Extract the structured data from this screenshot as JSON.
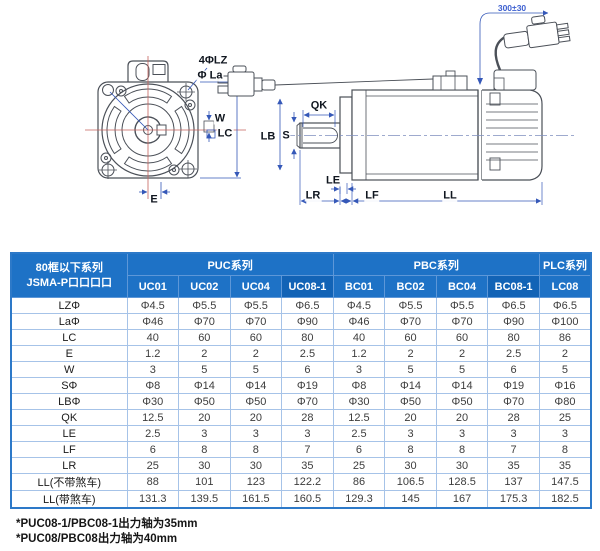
{
  "diagram": {
    "labels": {
      "holes": "4ΦLZ",
      "la": "Φ La",
      "w": "W",
      "lc": "LC",
      "e": "E",
      "lb": "LB",
      "s": "S",
      "qk": "QK",
      "le": "LE",
      "lr": "LR",
      "lf": "LF",
      "ll": "LL",
      "cable_length": "300±30"
    }
  },
  "table": {
    "corner_header": [
      "80框以下系列",
      "JSMA-P口口口口"
    ],
    "series": [
      {
        "label": "PUC系列",
        "span": 4
      },
      {
        "label": "PBC系列",
        "span": 4
      },
      {
        "label": "PLC系列",
        "span": 1
      }
    ],
    "columns": [
      "UC01",
      "UC02",
      "UC04",
      "UC08-1",
      "BC01",
      "BC02",
      "BC04",
      "BC08-1",
      "LC08"
    ],
    "highlight_columns": [
      "UC08-1",
      "BC08-1"
    ],
    "rows": [
      {
        "label": "LZΦ",
        "values": [
          "Φ4.5",
          "Φ5.5",
          "Φ5.5",
          "Φ6.5",
          "Φ4.5",
          "Φ5.5",
          "Φ5.5",
          "Φ6.5",
          "Φ6.5"
        ]
      },
      {
        "label": "LaΦ",
        "values": [
          "Φ46",
          "Φ70",
          "Φ70",
          "Φ90",
          "Φ46",
          "Φ70",
          "Φ70",
          "Φ90",
          "Φ100"
        ]
      },
      {
        "label": "LC",
        "values": [
          "40",
          "60",
          "60",
          "80",
          "40",
          "60",
          "60",
          "80",
          "86"
        ]
      },
      {
        "label": "E",
        "values": [
          "1.2",
          "2",
          "2",
          "2.5",
          "1.2",
          "2",
          "2",
          "2.5",
          "2"
        ]
      },
      {
        "label": "W",
        "values": [
          "3",
          "5",
          "5",
          "6",
          "3",
          "5",
          "5",
          "6",
          "5"
        ]
      },
      {
        "label": "SΦ",
        "values": [
          "Φ8",
          "Φ14",
          "Φ14",
          "Φ19",
          "Φ8",
          "Φ14",
          "Φ14",
          "Φ19",
          "Φ16"
        ]
      },
      {
        "label": "LBΦ",
        "values": [
          "Φ30",
          "Φ50",
          "Φ50",
          "Φ70",
          "Φ30",
          "Φ50",
          "Φ50",
          "Φ70",
          "Φ80"
        ]
      },
      {
        "label": "QK",
        "values": [
          "12.5",
          "20",
          "20",
          "28",
          "12.5",
          "20",
          "20",
          "28",
          "25"
        ]
      },
      {
        "label": "LE",
        "values": [
          "2.5",
          "3",
          "3",
          "3",
          "2.5",
          "3",
          "3",
          "3",
          "3"
        ]
      },
      {
        "label": "LF",
        "values": [
          "6",
          "8",
          "8",
          "7",
          "6",
          "8",
          "8",
          "7",
          "8"
        ]
      },
      {
        "label": "LR",
        "values": [
          "25",
          "30",
          "30",
          "35",
          "25",
          "30",
          "30",
          "35",
          "35"
        ]
      },
      {
        "label": "LL(不带煞车)",
        "values": [
          "88",
          "101",
          "123",
          "122.2",
          "86",
          "106.5",
          "128.5",
          "137",
          "147.5"
        ]
      },
      {
        "label": "LL(带煞车)",
        "values": [
          "131.3",
          "139.5",
          "161.5",
          "160.5",
          "129.3",
          "145",
          "167",
          "175.3",
          "182.5"
        ]
      }
    ]
  },
  "notes": [
    "*PUC08-1/PBC08-1出力轴为35mm",
    "*PUC08/PBC08出力轴为40mm"
  ],
  "colors": {
    "header_blue": "#1e72c6",
    "header_blue_highlight": "#1263b6",
    "grid_blue": "#a6c3e8",
    "outer_border_blue": "#2d79c8",
    "dimension_blue": "#3558b8",
    "centerline_red": "#c4625c",
    "drawing_gray": "#4b5058"
  }
}
